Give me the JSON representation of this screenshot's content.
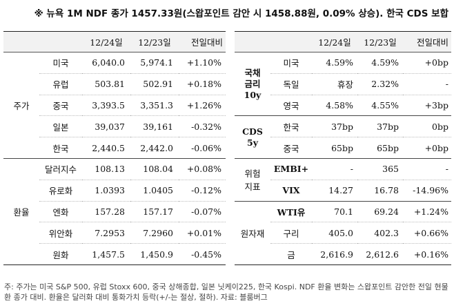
{
  "title": "※ 뉴욕 1M NDF 종가 1457.33원(스왑포인트 감안 시 1458.88원, 0.09% 상승). 한국 CDS 보합",
  "headers": {
    "d1": "12/24일",
    "d2": "12/23일",
    "chg": "전일대비"
  },
  "left": {
    "groups": [
      {
        "category": "주가",
        "rows": [
          {
            "item": "미국",
            "d1": "6,040.0",
            "d2": "5,974.1",
            "chg": "+1.10%"
          },
          {
            "item": "유럽",
            "d1": "503.81",
            "d2": "502.91",
            "chg": "+0.18%"
          },
          {
            "item": "중국",
            "d1": "3,393.5",
            "d2": "3,351.3",
            "chg": "+1.26%"
          },
          {
            "item": "일본",
            "d1": "39,037",
            "d2": "39,161",
            "chg": "-0.32%"
          },
          {
            "item": "한국",
            "d1": "2,440.5",
            "d2": "2,442.0",
            "chg": "-0.06%"
          }
        ]
      },
      {
        "category": "환율",
        "rows": [
          {
            "item": "달러지수",
            "d1": "108.13",
            "d2": "108.04",
            "chg": "+0.08%"
          },
          {
            "item": "유로화",
            "d1": "1.0393",
            "d2": "1.0405",
            "chg": "-0.12%"
          },
          {
            "item": "엔화",
            "d1": "157.28",
            "d2": "157.17",
            "chg": "-0.07%"
          },
          {
            "item": "위안화",
            "d1": "7.2953",
            "d2": "7.2960",
            "chg": "+0.01%"
          },
          {
            "item": "원화",
            "d1": "1,457.5",
            "d2": "1,450.9",
            "chg": "-0.45%"
          }
        ]
      }
    ]
  },
  "right": {
    "groups": [
      {
        "category": "국채\n금리\n10y",
        "bold": true,
        "rows": [
          {
            "item": "미국",
            "d1": "4.59%",
            "d2": "4.59%",
            "chg": "+0bp"
          },
          {
            "item": "독일",
            "d1": "휴장",
            "d2": "2.32%",
            "chg": "-"
          },
          {
            "item": "영국",
            "d1": "4.58%",
            "d2": "4.55%",
            "chg": "+3bp"
          }
        ]
      },
      {
        "category": "CDS\n5y",
        "bold": true,
        "rows": [
          {
            "item": "한국",
            "d1": "37bp",
            "d2": "37bp",
            "chg": "0bp"
          },
          {
            "item": "중국",
            "d1": "65bp",
            "d2": "65bp",
            "chg": "+0bp"
          }
        ]
      },
      {
        "category": "위험\n지표",
        "rows": [
          {
            "item": "EMBI+",
            "bold": true,
            "d1": "-",
            "d2": "365",
            "chg": "-"
          },
          {
            "item": "VIX",
            "bold": true,
            "d1": "14.27",
            "d2": "16.78",
            "chg": "-14.96%"
          }
        ]
      },
      {
        "category": "원자재",
        "rows": [
          {
            "item": "WTI유",
            "bold": true,
            "d1": "70.1",
            "d2": "69.24",
            "chg": "+1.24%"
          },
          {
            "item": "구리",
            "d1": "405.0",
            "d2": "402.3",
            "chg": "+0.66%"
          },
          {
            "item": "금",
            "d1": "2,616.9",
            "d2": "2,612.6",
            "chg": "+0.16%"
          }
        ]
      }
    ]
  },
  "note": "주: 주가는 미국 S&P 500, 유럽 Stoxx 600, 중국 상해종합, 일본 닛케이225, 한국 Kospi. NDF 환율 변화는 스왑포인트 감안한 전일 현물환 종가 대비. 환율은 달러화 대비 통화가치 등락(+/-는 절상, 절하). 자료: 블룸버그"
}
